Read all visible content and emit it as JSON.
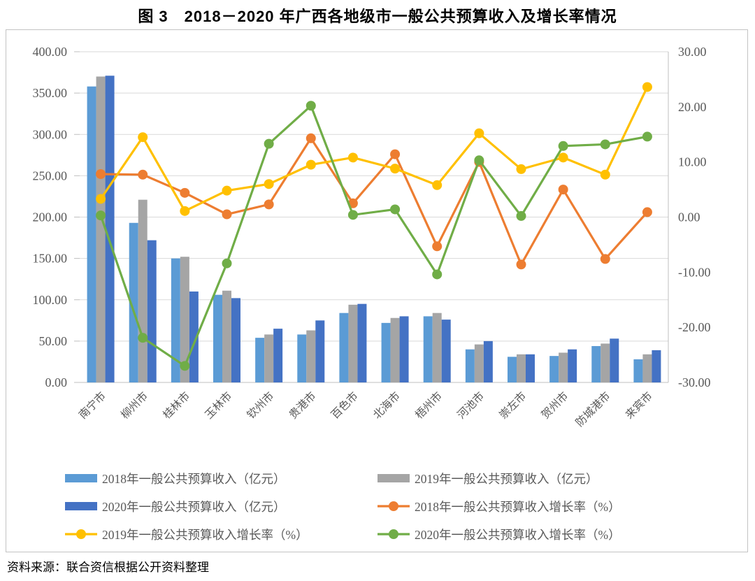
{
  "title": "图 3　2018－2020 年广西各地级市一般公共预算收入及增长率情况",
  "source_note": "资料来源：联合资信根据公开资料整理",
  "chart_data": {
    "type": "combo_bar_line",
    "title": "图 3　2018－2020 年广西各地级市一般公共预算收入及增长率情况",
    "categories": [
      "南宁市",
      "柳州市",
      "桂林市",
      "玉林市",
      "钦州市",
      "贵港市",
      "百色市",
      "北海市",
      "梧州市",
      "河池市",
      "崇左市",
      "贺州市",
      "防城港市",
      "来宾市"
    ],
    "bar_series": [
      {
        "name": "2018年一般公共预算收入（亿元）",
        "color": "#5B9BD5",
        "axis": "left",
        "values": [
          358,
          193,
          150,
          106,
          54,
          58,
          84,
          72,
          80,
          40,
          31,
          32,
          44,
          28
        ]
      },
      {
        "name": "2019年一般公共预算收入（亿元）",
        "color": "#A5A5A5",
        "axis": "left",
        "values": [
          370,
          221,
          152,
          111,
          58,
          63,
          94,
          78,
          84,
          46,
          34,
          36,
          47,
          34
        ]
      },
      {
        "name": "2020年一般公共预算收入（亿元）",
        "color": "#4472C4",
        "axis": "left",
        "values": [
          371,
          172,
          110,
          102,
          65,
          75,
          95,
          80,
          76,
          50,
          34,
          40,
          53,
          39
        ]
      }
    ],
    "line_series": [
      {
        "name": "2018年一般公共预算收入增长率（%）",
        "color": "#ED7D31",
        "axis": "right",
        "values": [
          7.8,
          7.7,
          4.4,
          0.5,
          2.3,
          14.3,
          2.5,
          11.4,
          -5.3,
          10.0,
          -8.6,
          5.0,
          -7.6,
          0.9
        ]
      },
      {
        "name": "2019年一般公共预算收入增长率（%）",
        "color": "#FFC000",
        "axis": "right",
        "values": [
          3.3,
          14.5,
          1.1,
          4.8,
          6.0,
          9.5,
          10.8,
          8.8,
          5.8,
          15.2,
          8.7,
          10.8,
          7.7,
          23.6
        ]
      },
      {
        "name": "2020年一般公共预算收入增长率（%）",
        "color": "#70AD47",
        "axis": "right",
        "values": [
          0.3,
          -21.9,
          -27.0,
          -8.4,
          13.3,
          20.2,
          0.4,
          1.4,
          -10.4,
          10.3,
          0.2,
          12.9,
          13.2,
          14.6
        ]
      }
    ],
    "left_axis": {
      "min": 0,
      "max": 400,
      "step": 50,
      "labels": [
        "400.00",
        "350.00",
        "300.00",
        "250.00",
        "200.00",
        "150.00",
        "100.00",
        "50.00",
        "0.00"
      ]
    },
    "right_axis": {
      "min": -30,
      "max": 30,
      "step": 10,
      "labels": [
        "30.00",
        "20.00",
        "10.00",
        "0.00",
        "-10.00",
        "-20.00",
        "-30.00"
      ]
    },
    "grid": true,
    "legend_position": "bottom",
    "styles": {
      "gridline_color": "#D9D9D9",
      "axis_line_color": "#BFBFBF",
      "tick_label_color": "#595959",
      "category_label_color": "#595959",
      "legend_text_color": "#595959"
    }
  }
}
